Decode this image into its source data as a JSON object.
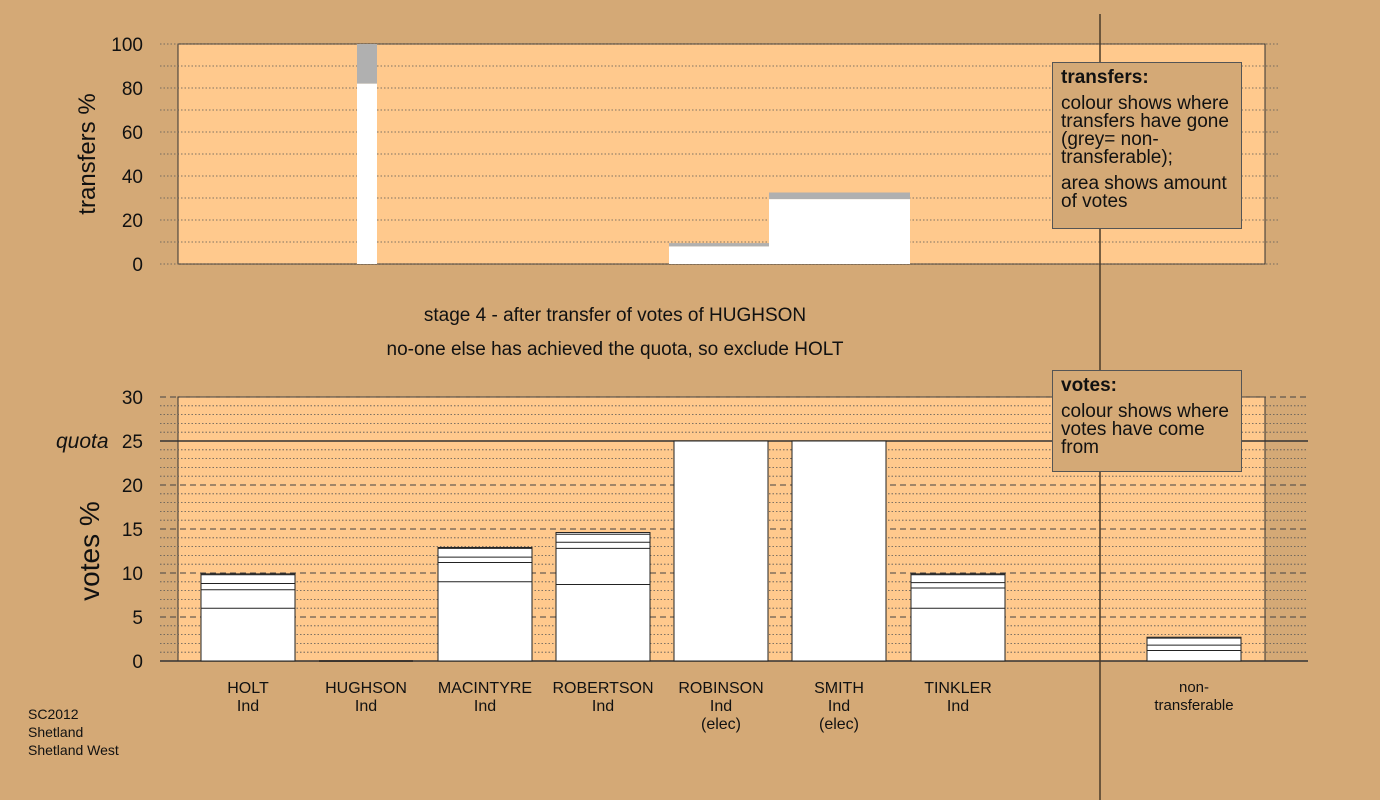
{
  "chart_data": [
    {
      "type": "bar",
      "ylabel": "transfers %",
      "ylim": [
        0,
        100
      ],
      "yticks": [
        0,
        20,
        40,
        60,
        80,
        100
      ],
      "series": [
        {
          "name": "HUGHSON",
          "values": [
            82,
            18
          ],
          "colors": [
            "#ffffff",
            "#b0b0b0"
          ]
        },
        {
          "name": "ROBINSON",
          "values": [
            8,
            1.5
          ],
          "colors": [
            "#ffffff",
            "#b0b0b0"
          ]
        },
        {
          "name": "SMITH",
          "values": [
            29.5,
            3
          ],
          "colors": [
            "#ffffff",
            "#b0b0b0"
          ]
        }
      ],
      "legend": {
        "title": "transfers:",
        "lines": [
          "colour shows where transfers have gone (grey= non-transferable);",
          "area shows amount of votes"
        ]
      }
    },
    {
      "type": "bar",
      "ylabel": "votes %",
      "ylim": [
        0,
        30
      ],
      "yticks": [
        0,
        5,
        10,
        15,
        20,
        25,
        30
      ],
      "quota": {
        "label": "quota",
        "value": 25
      },
      "categories": [
        {
          "name": "HOLT",
          "party": "Ind",
          "note": ""
        },
        {
          "name": "HUGHSON",
          "party": "Ind",
          "note": ""
        },
        {
          "name": "MACINTYRE",
          "party": "Ind",
          "note": ""
        },
        {
          "name": "ROBERTSON",
          "party": "Ind",
          "note": ""
        },
        {
          "name": "ROBINSON",
          "party": "Ind",
          "note": "(elec)"
        },
        {
          "name": "SMITH",
          "party": "Ind",
          "note": "(elec)"
        },
        {
          "name": "TINKLER",
          "party": "Ind",
          "note": ""
        },
        {
          "name": "non-transferable",
          "party": "",
          "note": ""
        }
      ],
      "values": [
        9.9,
        0,
        12.9,
        14.6,
        25,
        25,
        9.9,
        2.7
      ],
      "segments": [
        [
          6.0,
          8.1,
          8.8,
          9.8
        ],
        [],
        [
          9.0,
          11.2,
          11.8,
          12.8
        ],
        [
          8.7,
          12.8,
          13.5,
          14.4
        ],
        [
          25
        ],
        [
          25
        ],
        [
          6.0,
          8.3,
          8.9,
          9.8
        ],
        [
          1.2,
          1.8,
          2.6
        ]
      ],
      "legend": {
        "title": "votes:",
        "lines": [
          "colour shows where votes have come from"
        ]
      }
    }
  ],
  "stage": {
    "line1": "stage 4 - after transfer of votes of HUGHSON",
    "line2": "no-one else has achieved the quota, so exclude HOLT"
  },
  "footer": [
    "SC2012",
    "Shetland",
    "Shetland West"
  ],
  "colors": {
    "background": "#d4a976",
    "plot_fill": "#ffc98d",
    "bar_fill": "#ffffff",
    "nontransferable": "#b0b0b0",
    "axis": "#333333"
  }
}
